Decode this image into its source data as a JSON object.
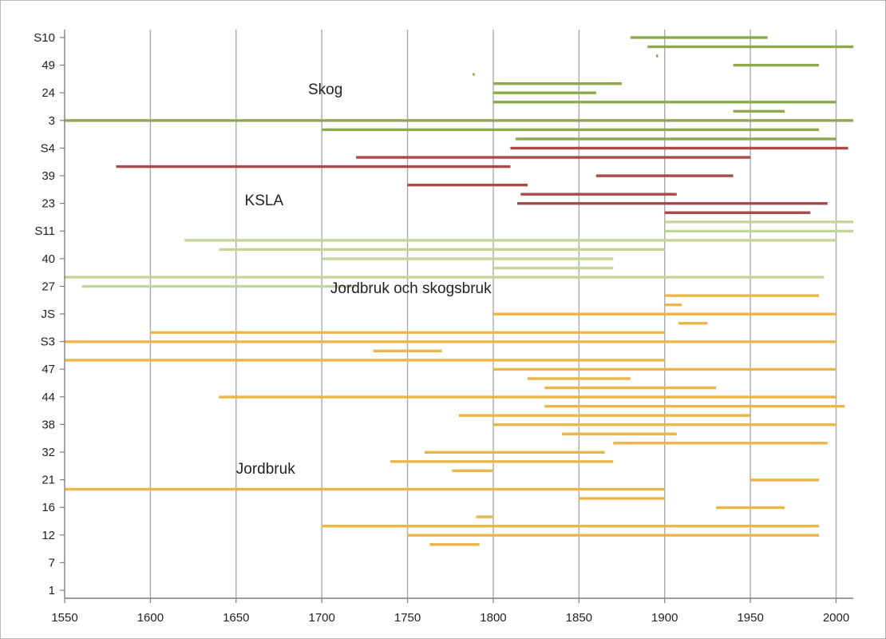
{
  "chart_data": {
    "type": "bar",
    "subtype": "horizontal-timeline",
    "title": "",
    "xlabel": "",
    "ylabel": "",
    "xlim": [
      1550,
      2010
    ],
    "x_ticks": [
      1550,
      1600,
      1650,
      1700,
      1750,
      1800,
      1850,
      1900,
      1950,
      2000
    ],
    "grid": "vertical",
    "legend": "none",
    "colors": {
      "skog": "#8caa4c",
      "ksla": "#a84a49",
      "jordbruk_skogsbruk": "#c3d59a",
      "jordbruk": "#ebb54a",
      "grid": "#a9a9a9",
      "axis": "#7f7f7f"
    },
    "y_tick_labels": [
      "S10",
      "49",
      "24",
      "3",
      "S4",
      "39",
      "23",
      "S11",
      "40",
      "27",
      "JS",
      "S3",
      "47",
      "44",
      "38",
      "32",
      "21",
      "16",
      "12",
      "7",
      "1"
    ],
    "annotations": [
      {
        "text": "Skog",
        "group": "skog"
      },
      {
        "text": "KSLA",
        "group": "ksla"
      },
      {
        "text": "Jordbruk och skogsbruk",
        "group": "jordbruk_skogsbruk"
      },
      {
        "text": "Jordbruk",
        "group": "jordbruk"
      }
    ],
    "series": [
      {
        "group": "skog",
        "intervals": [
          [
            1880,
            1960
          ],
          [
            1890,
            2010
          ],
          [
            1895,
            1895
          ],
          [
            1940,
            1990
          ],
          [
            1788,
            1788
          ],
          [
            1800,
            1875
          ],
          [
            1800,
            1860
          ],
          [
            1800,
            2000
          ],
          [
            1940,
            1970
          ],
          [
            1550,
            2010
          ],
          [
            1700,
            1990
          ],
          [
            1813,
            2000
          ]
        ]
      },
      {
        "group": "ksla",
        "intervals": [
          [
            1810,
            2007
          ],
          [
            1720,
            1950
          ],
          [
            1580,
            1810
          ],
          [
            1860,
            1940
          ],
          [
            1750,
            1820
          ],
          [
            1816,
            1907
          ],
          [
            1814,
            1995
          ],
          [
            1900,
            1985
          ]
        ]
      },
      {
        "group": "jordbruk_skogsbruk",
        "intervals": [
          [
            1900,
            2010
          ],
          [
            1900,
            2010
          ],
          [
            1620,
            2000
          ],
          [
            1640,
            1900
          ],
          [
            1700,
            1870
          ],
          [
            1800,
            1870
          ],
          [
            1550,
            1993
          ],
          [
            1560,
            1720
          ]
        ]
      },
      {
        "group": "jordbruk",
        "intervals": [
          [
            1900,
            1990
          ],
          [
            1900,
            1910
          ],
          [
            1800,
            2000
          ],
          [
            1908,
            1925
          ],
          [
            1600,
            1900
          ],
          [
            1550,
            2000
          ],
          [
            1730,
            1770
          ],
          [
            1550,
            1900
          ],
          [
            1800,
            2000
          ],
          [
            1820,
            1880
          ],
          [
            1830,
            1930
          ],
          [
            1640,
            2000
          ],
          [
            1830,
            2005
          ],
          [
            1780,
            1950
          ],
          [
            1800,
            2000
          ],
          [
            1840,
            1907
          ],
          [
            1870,
            1995
          ],
          [
            1760,
            1865
          ],
          [
            1740,
            1870
          ],
          [
            1776,
            1800
          ],
          [
            1950,
            1990
          ],
          [
            1550,
            1900
          ],
          [
            1850,
            1900
          ],
          [
            1930,
            1970
          ],
          [
            1790,
            1800
          ],
          [
            1700,
            1990
          ],
          [
            1750,
            1990
          ],
          [
            1763,
            1792
          ]
        ]
      }
    ]
  }
}
